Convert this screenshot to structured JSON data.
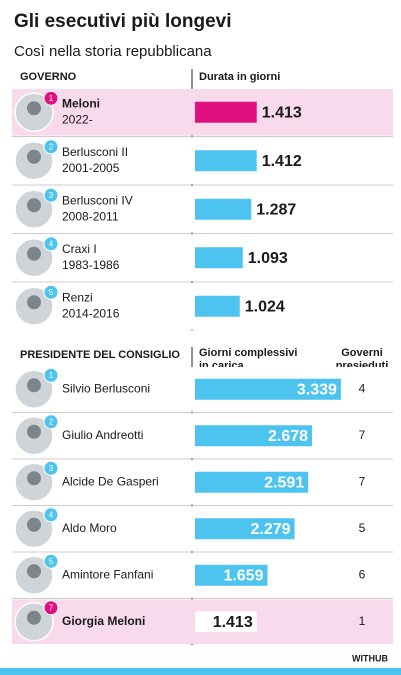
{
  "title": "Gli esecutivi più longevi",
  "subtitle": "Così nella storia repubblicana",
  "source": "WITHUB",
  "chart_data": [
    {
      "type": "bar",
      "orientation": "horizontal",
      "label_position": "outside",
      "category_header": "GOVERNO",
      "value_header": "Durata in giorni",
      "ranks": [
        1,
        2,
        3,
        4,
        5
      ],
      "categories": [
        "Meloni",
        "Berlusconi II",
        "Berlusconi IV",
        "Craxi I",
        "Renzi"
      ],
      "periods": [
        "2022-",
        "2001-2005",
        "2008-2011",
        "1983-1986",
        "2014-2016"
      ],
      "values": [
        1413,
        1412,
        1287,
        1093,
        1024
      ],
      "value_labels": [
        "1.413",
        "1.412",
        "1.287",
        "1.093",
        "1.024"
      ],
      "colors": [
        "#e0107f",
        "#4dc3f0",
        "#4dc3f0",
        "#4dc3f0",
        "#4dc3f0"
      ],
      "row_backgrounds": [
        "#f9d9ec",
        "#ffffff",
        "#ffffff",
        "#ffffff",
        "#ffffff"
      ]
    },
    {
      "type": "bar",
      "orientation": "horizontal",
      "label_position": "inside",
      "category_header": "PRESIDENTE DEL CONSIGLIO",
      "value_header": "Giorni complessivi in carica",
      "extra_header": "Governi presieduti",
      "ranks": [
        1,
        2,
        3,
        4,
        5,
        7
      ],
      "categories": [
        "Silvio Berlusconi",
        "Giulio Andreotti",
        "Alcide De Gasperi",
        "Aldo Moro",
        "Amintore Fanfani",
        "Giorgia Meloni"
      ],
      "values": [
        3339,
        2678,
        2591,
        2279,
        1659,
        1413
      ],
      "value_labels": [
        "3.339",
        "2.678",
        "2.591",
        "2.279",
        "1.659",
        "1.413"
      ],
      "governments": [
        4,
        7,
        7,
        5,
        6,
        1
      ],
      "colors": [
        "#4dc3f0",
        "#4dc3f0",
        "#4dc3f0",
        "#4dc3f0",
        "#4dc3f0",
        "#ffffff"
      ],
      "row_backgrounds": [
        "#ffffff",
        "#ffffff",
        "#ffffff",
        "#ffffff",
        "#ffffff",
        "#f9d9ec"
      ]
    }
  ]
}
